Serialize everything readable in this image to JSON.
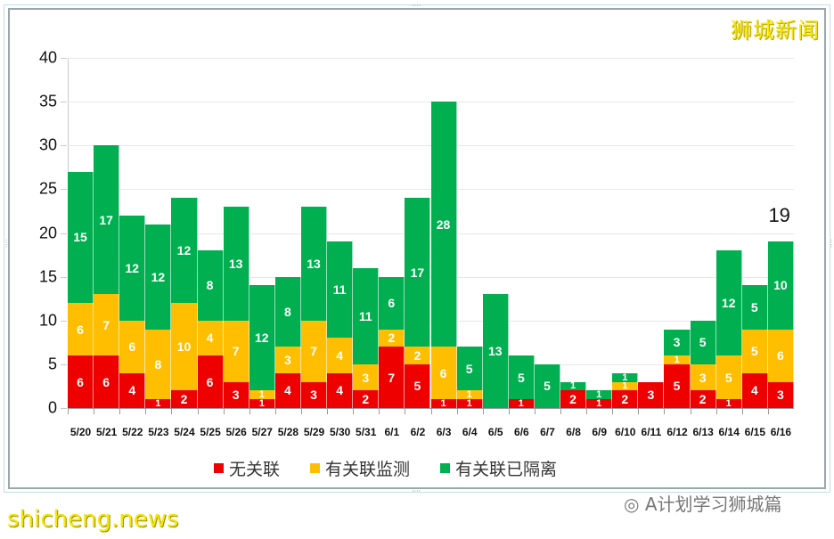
{
  "watermarks": {
    "top_right": "狮城新闻",
    "bottom_left": "shicheng.news",
    "bottom_right_icon": "wechat-icon",
    "bottom_right": "A计划学习狮城篇"
  },
  "colors": {
    "no_link": "#ee0000",
    "linked_monitored": "#ffbf00",
    "linked_quarantined": "#00b050"
  },
  "chart_data": {
    "type": "bar",
    "stacked": true,
    "title": "",
    "xlabel": "",
    "ylabel": "",
    "ylim": [
      0,
      40
    ],
    "yticks": [
      0,
      5,
      10,
      15,
      20,
      25,
      30,
      35,
      40
    ],
    "grid": true,
    "legend_position": "bottom",
    "categories": [
      "5/20",
      "5/21",
      "5/22",
      "5/23",
      "5/24",
      "5/25",
      "5/26",
      "5/27",
      "5/28",
      "5/29",
      "5/30",
      "5/31",
      "6/1",
      "6/2",
      "6/3",
      "6/4",
      "6/5",
      "6/6",
      "6/7",
      "6/8",
      "6/9",
      "6/10",
      "6/11",
      "6/12",
      "6/13",
      "6/14",
      "6/15",
      "6/16"
    ],
    "series": [
      {
        "name": "无关联",
        "color": "#ee0000",
        "values": [
          6,
          6,
          4,
          1,
          2,
          6,
          3,
          1,
          4,
          3,
          4,
          2,
          7,
          5,
          1,
          1,
          0,
          1,
          0,
          2,
          1,
          2,
          3,
          5,
          2,
          1,
          4,
          3
        ]
      },
      {
        "name": "有关联监测",
        "color": "#ffbf00",
        "values": [
          6,
          7,
          6,
          8,
          10,
          4,
          7,
          1,
          3,
          7,
          4,
          3,
          2,
          2,
          6,
          1,
          0,
          0,
          0,
          0,
          0,
          1,
          0,
          1,
          3,
          5,
          5,
          6
        ]
      },
      {
        "name": "有关联已隔离",
        "color": "#00b050",
        "values": [
          15,
          17,
          12,
          12,
          12,
          8,
          13,
          12,
          8,
          13,
          11,
          11,
          6,
          17,
          28,
          5,
          13,
          5,
          5,
          1,
          1,
          1,
          0,
          3,
          5,
          12,
          5,
          10
        ]
      }
    ],
    "totals": [
      27,
      30,
      22,
      21,
      24,
      18,
      23,
      14,
      15,
      23,
      19,
      16,
      15,
      24,
      35,
      7,
      13,
      6,
      5,
      3,
      2,
      4,
      3,
      9,
      10,
      18,
      14,
      19
    ],
    "annotations": [
      {
        "category": "6/16",
        "text": "19"
      }
    ]
  },
  "legend": {
    "items": [
      {
        "label": "无关联",
        "color": "#ee0000"
      },
      {
        "label": "有关联监测",
        "color": "#ffbf00"
      },
      {
        "label": "有关联已隔离",
        "color": "#00b050"
      }
    ]
  },
  "last_total_label": "19"
}
